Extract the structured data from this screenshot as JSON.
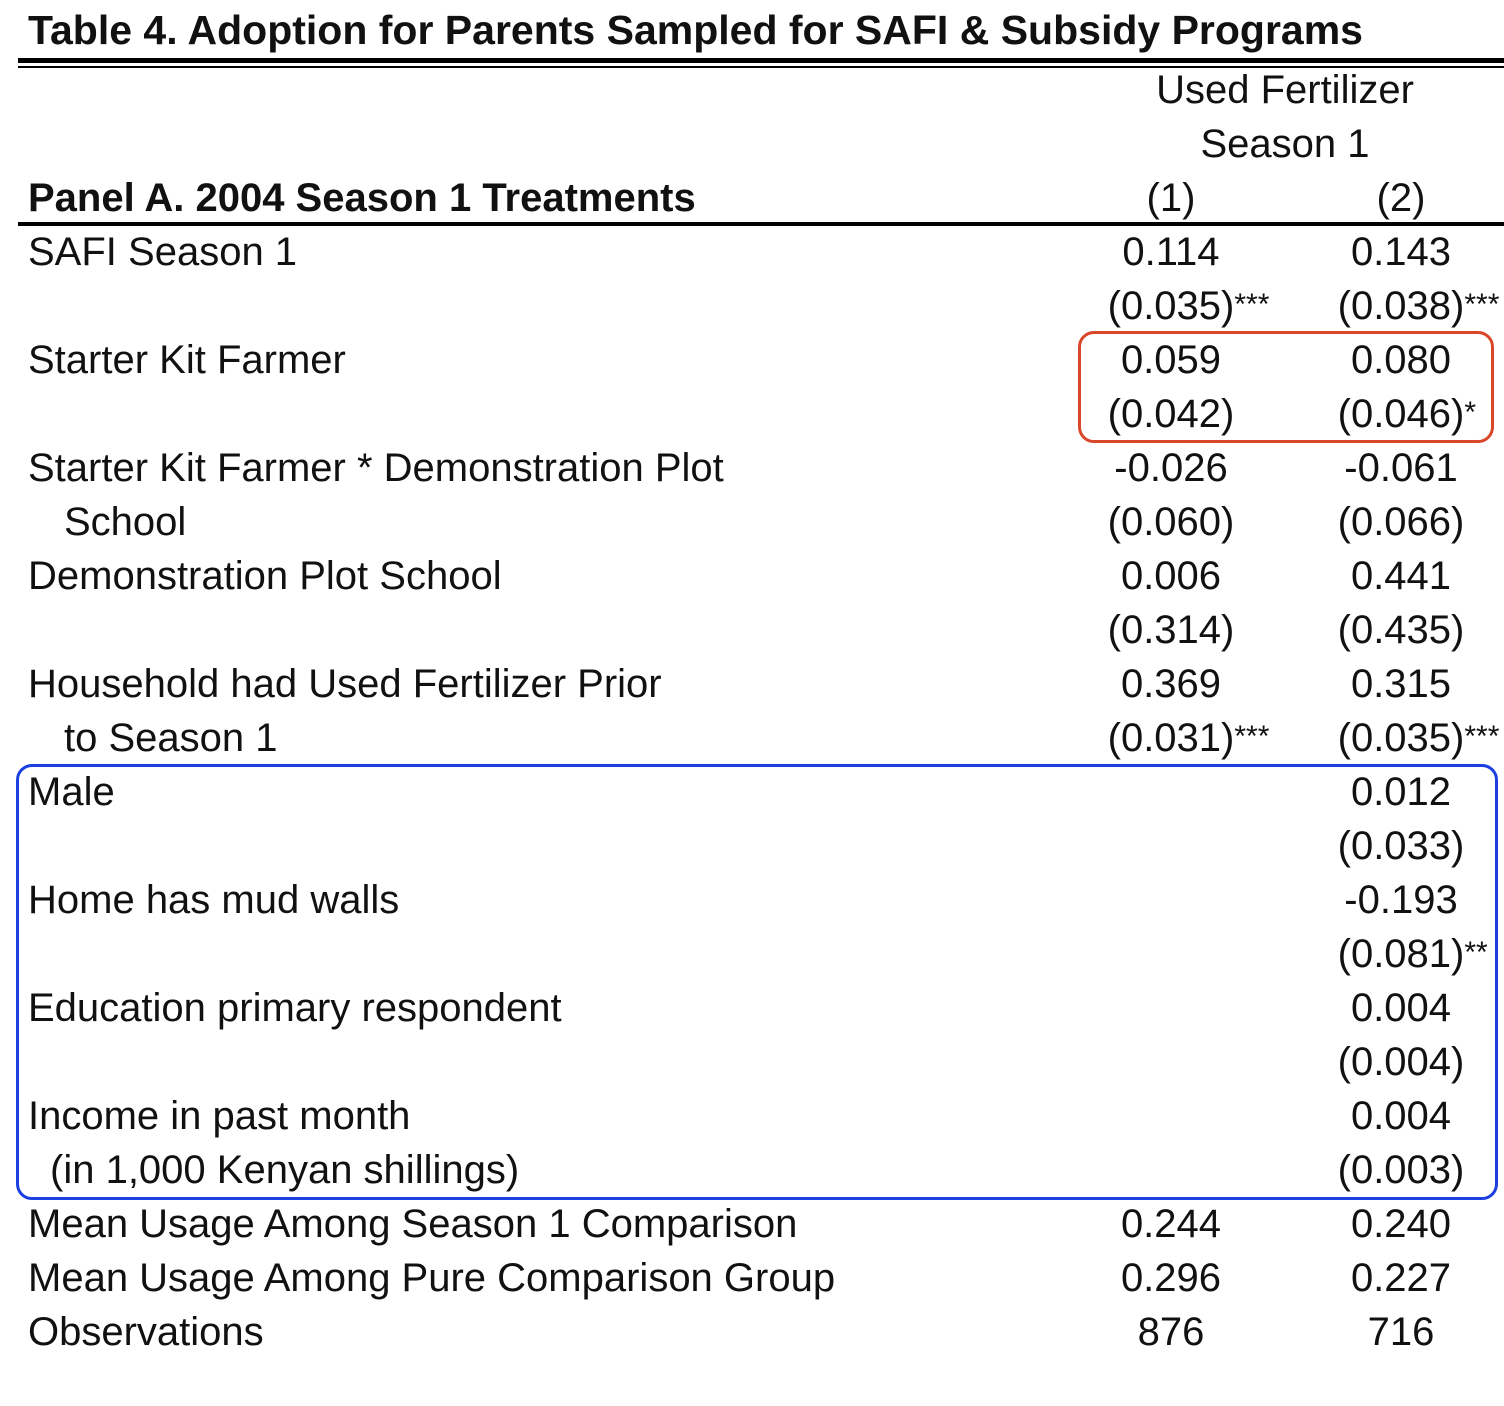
{
  "title": "Table 4. Adoption for Parents Sampled for SAFI & Subsidy Programs",
  "header": {
    "dependent_line1": "Used Fertilizer",
    "dependent_line2": "Season 1",
    "panel": "Panel A. 2004 Season 1 Treatments",
    "col1": "(1)",
    "col2": "(2)"
  },
  "rows": [
    {
      "label": "SAFI Season 1",
      "c1": "0.114",
      "c1s": "",
      "c2": "0.143",
      "c2s": ""
    },
    {
      "label": "",
      "c1": "(0.035)",
      "c1s": "***",
      "c2": "(0.038)",
      "c2s": "***"
    },
    {
      "label": "Starter Kit Farmer",
      "c1": "0.059",
      "c1s": "",
      "c2": "0.080",
      "c2s": ""
    },
    {
      "label": "",
      "c1": "(0.042)",
      "c1s": "",
      "c2": "(0.046)",
      "c2s": "*"
    },
    {
      "label": "Starter Kit Farmer * Demonstration Plot",
      "c1": "-0.026",
      "c1s": "",
      "c2": "-0.061",
      "c2s": ""
    },
    {
      "label": "School",
      "c1": "(0.060)",
      "c1s": "",
      "c2": "(0.066)",
      "c2s": ""
    },
    {
      "label": "Demonstration Plot School",
      "c1": "0.006",
      "c1s": "",
      "c2": "0.441",
      "c2s": ""
    },
    {
      "label": "",
      "c1": "(0.314)",
      "c1s": "",
      "c2": "(0.435)",
      "c2s": ""
    },
    {
      "label": "Household had Used Fertilizer Prior",
      "c1": "0.369",
      "c1s": "",
      "c2": "0.315",
      "c2s": ""
    },
    {
      "label": "to Season 1",
      "c1": "(0.031)",
      "c1s": "***",
      "c2": "(0.035)",
      "c2s": "***"
    },
    {
      "label": "Male",
      "c1": "",
      "c1s": "",
      "c2": "0.012",
      "c2s": ""
    },
    {
      "label": "",
      "c1": "",
      "c1s": "",
      "c2": "(0.033)",
      "c2s": ""
    },
    {
      "label": "Home has mud walls",
      "c1": "",
      "c1s": "",
      "c2": "-0.193",
      "c2s": ""
    },
    {
      "label": "",
      "c1": "",
      "c1s": "",
      "c2": "(0.081)",
      "c2s": "**"
    },
    {
      "label": "Education primary respondent",
      "c1": "",
      "c1s": "",
      "c2": "0.004",
      "c2s": ""
    },
    {
      "label": "",
      "c1": "",
      "c1s": "",
      "c2": "(0.004)",
      "c2s": ""
    },
    {
      "label": "Income in past month",
      "c1": "",
      "c1s": "",
      "c2": "0.004",
      "c2s": ""
    },
    {
      "label": "(in 1,000 Kenyan shillings)",
      "c1": "",
      "c1s": "",
      "c2": "(0.003)",
      "c2s": ""
    },
    {
      "label": "Mean Usage Among Season 1 Comparison",
      "c1": "0.244",
      "c1s": "",
      "c2": "0.240",
      "c2s": ""
    },
    {
      "label": "Mean Usage Among Pure Comparison Group",
      "c1": "0.296",
      "c1s": "",
      "c2": "0.227",
      "c2s": ""
    },
    {
      "label": "Observations",
      "c1": "876",
      "c1s": "",
      "c2": "716",
      "c2s": ""
    }
  ],
  "highlights": {
    "red_color": "#d9472b",
    "blue_color": "#1b3fe0"
  }
}
